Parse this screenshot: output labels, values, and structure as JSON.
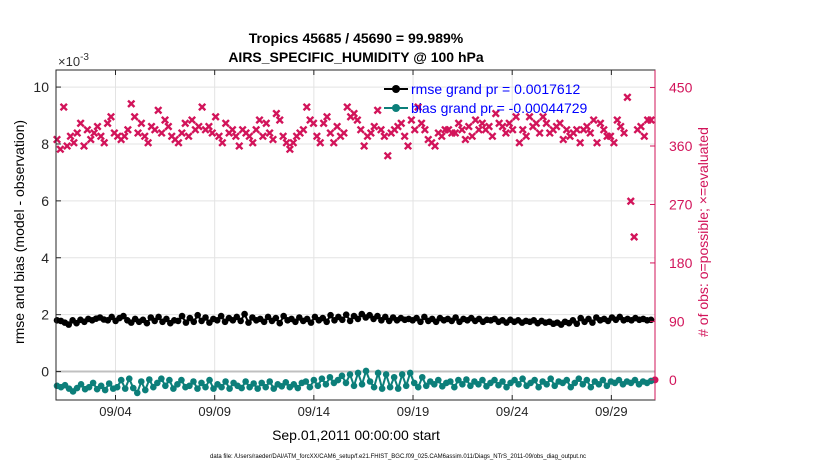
{
  "chart_data": {
    "type": "line",
    "title_line1": "Tropics 45685 / 45690 = 99.989%",
    "title_line2": "AIRS_SPECIFIC_HUMIDITY @ 100 hPa",
    "xlabel": "Sep.01,2011 00:00:00 start",
    "ylabel_left": "rmse and bias (model - observation)",
    "ylabel_right": "# of obs: o=possible; ×=evaluated",
    "exponent_label": "×10",
    "exponent_power": "-3",
    "footer": "data file: /Users/raeder/DAI/ATM_forcXX/CAM6_setup/f.e21.FHIST_BGC.f09_025.CAM6assim.011/Diags_NTrS_2011-09/obs_diag_output.nc",
    "xlim": [
      0,
      30.2
    ],
    "x_ticks": [
      3,
      8,
      13,
      18,
      23,
      28
    ],
    "x_tick_labels": [
      "09/04",
      "09/09",
      "09/14",
      "09/19",
      "09/24",
      "09/29"
    ],
    "ylim_left": [
      -1.0,
      10.6
    ],
    "y_left_ticks": [
      0,
      2,
      4,
      6,
      8,
      10
    ],
    "y_left_tick_labels": [
      "0",
      "2",
      "4",
      "6",
      "8",
      "10"
    ],
    "ylim_right": [
      -31,
      477
    ],
    "y_right_ticks": [
      0,
      90,
      180,
      270,
      360,
      450
    ],
    "y_right_tick_labels": [
      "0",
      "90",
      "180",
      "270",
      "360",
      "450"
    ],
    "colors": {
      "rmse": "#000000",
      "bias": "#0c7f7a",
      "obs": "#d2145a",
      "legend_text": "#0000ff",
      "zero_line": "#c0c0c0",
      "grid": "#e3e3e3"
    },
    "series": [
      {
        "name": "rmse grand pr = 0.0017612",
        "axis": "left",
        "values": [
          1.8,
          1.78,
          1.72,
          1.65,
          1.8,
          1.7,
          1.82,
          1.75,
          1.85,
          1.8,
          1.86,
          1.9,
          1.83,
          1.8,
          1.92,
          1.78,
          1.88,
          1.95,
          1.8,
          1.72,
          1.85,
          1.75,
          1.82,
          1.7,
          1.9,
          1.78,
          1.92,
          1.75,
          1.85,
          1.7,
          1.8,
          1.78,
          1.95,
          1.72,
          1.88,
          1.75,
          1.98,
          1.78,
          1.9,
          1.72,
          1.85,
          1.8,
          1.95,
          1.75,
          1.88,
          1.8,
          1.92,
          1.78,
          2.02,
          1.72,
          1.9,
          1.8,
          1.85,
          1.75,
          1.92,
          1.78,
          1.88,
          1.7,
          1.95,
          1.8,
          1.85,
          1.75,
          1.9,
          1.78,
          1.85,
          1.72,
          1.92,
          1.8,
          1.88,
          1.75,
          1.98,
          1.8,
          1.92,
          1.82,
          2.0,
          1.78,
          1.95,
          1.85,
          2.02,
          1.9,
          1.98,
          1.85,
          1.95,
          1.8,
          1.92,
          1.78,
          1.9,
          1.8,
          1.88,
          1.82,
          1.85,
          1.8,
          1.88,
          1.75,
          1.92,
          1.78,
          1.85,
          1.75,
          1.88,
          1.8,
          1.85,
          1.78,
          1.9,
          1.75,
          1.85,
          1.8,
          1.88,
          1.78,
          1.85,
          1.75,
          1.82,
          1.8,
          1.85,
          1.75,
          1.8,
          1.72,
          1.82,
          1.75,
          1.8,
          1.72,
          1.78,
          1.75,
          1.8,
          1.7,
          1.78,
          1.72,
          1.75,
          1.68,
          1.72,
          1.65,
          1.75,
          1.7,
          1.8,
          1.68,
          1.88,
          1.75,
          1.85,
          1.72,
          1.9,
          1.8,
          1.85,
          1.78,
          1.9,
          1.82,
          1.92,
          1.8,
          1.85,
          1.8,
          1.88,
          1.82,
          1.85,
          1.8,
          1.82
        ]
      },
      {
        "name": "bias grand pr = -0.00044729",
        "axis": "left",
        "values": [
          -0.5,
          -0.55,
          -0.48,
          -0.6,
          -0.7,
          -0.58,
          -0.45,
          -0.62,
          -0.55,
          -0.4,
          -0.62,
          -0.5,
          -0.65,
          -0.42,
          -0.6,
          -0.55,
          -0.3,
          -0.6,
          -0.25,
          -0.58,
          -0.75,
          -0.35,
          -0.65,
          -0.28,
          -0.55,
          -0.4,
          -0.25,
          -0.5,
          -0.3,
          -0.6,
          -0.45,
          -0.3,
          -0.55,
          -0.5,
          -0.35,
          -0.6,
          -0.4,
          -0.55,
          -0.3,
          -0.6,
          -0.45,
          -0.55,
          -0.35,
          -0.6,
          -0.4,
          -0.5,
          -0.58,
          -0.35,
          -0.55,
          -0.42,
          -0.6,
          -0.4,
          -0.55,
          -0.35,
          -0.6,
          -0.45,
          -0.52,
          -0.38,
          -0.55,
          -0.45,
          -0.58,
          -0.4,
          -0.35,
          -0.55,
          -0.3,
          -0.5,
          -0.25,
          -0.45,
          -0.2,
          -0.4,
          -0.3,
          -0.15,
          -0.4,
          -0.1,
          -0.5,
          -0.05,
          -0.45,
          0.02,
          -0.35,
          -0.55,
          -0.05,
          -0.6,
          -0.1,
          -0.55,
          -0.2,
          -0.6,
          -0.1,
          -0.5,
          -0.05,
          -0.4,
          -0.55,
          -0.2,
          -0.5,
          -0.35,
          -0.45,
          -0.3,
          -0.52,
          -0.4,
          -0.35,
          -0.55,
          -0.3,
          -0.45,
          -0.28,
          -0.5,
          -0.35,
          -0.45,
          -0.3,
          -0.52,
          -0.4,
          -0.3,
          -0.48,
          -0.35,
          -0.55,
          -0.4,
          -0.3,
          -0.45,
          -0.25,
          -0.5,
          -0.4,
          -0.3,
          -0.55,
          -0.35,
          -0.45,
          -0.25,
          -0.5,
          -0.35,
          -0.4,
          -0.3,
          -0.55,
          -0.4,
          -0.25,
          -0.45,
          -0.3,
          -0.55,
          -0.35,
          -0.45,
          -0.3,
          -0.5,
          -0.35,
          -0.4,
          -0.3,
          -0.45,
          -0.35,
          -0.4,
          -0.3,
          -0.45,
          -0.35,
          -0.4,
          -0.33
        ]
      },
      {
        "name": "# of obs evaluated",
        "axis": "right",
        "marker": "x",
        "values": [
          370,
          355,
          420,
          360,
          375,
          365,
          380,
          395,
          360,
          385,
          370,
          380,
          390,
          375,
          365,
          395,
          405,
          380,
          375,
          370,
          375,
          385,
          425,
          405,
          380,
          395,
          375,
          365,
          390,
          385,
          415,
          380,
          400,
          390,
          375,
          370,
          365,
          380,
          395,
          375,
          400,
          385,
          390,
          420,
          385,
          390,
          380,
          405,
          375,
          365,
          395,
          380,
          385,
          375,
          360,
          385,
          380,
          375,
          365,
          385,
          400,
          375,
          395,
          380,
          370,
          410,
          400,
          375,
          365,
          355,
          365,
          375,
          380,
          385,
          420,
          400,
          395,
          375,
          365,
          395,
          405,
          380,
          365,
          390,
          375,
          380,
          420,
          405,
          410,
          400,
          385,
          360,
          375,
          380,
          390,
          415,
          385,
          375,
          345,
          380,
          385,
          390,
          395,
          375,
          360,
          400,
          385,
          420,
          395,
          385,
          370,
          365,
          360,
          380,
          375,
          385,
          385,
          380,
          380,
          395,
          385,
          370,
          390,
          375,
          400,
          385,
          395,
          385,
          390,
          375,
          410,
          395,
          390,
          380,
          395,
          385,
          405,
          365,
          385,
          375,
          405,
          390,
          395,
          380,
          405,
          395,
          380,
          385,
          390,
          395,
          370,
          385,
          375,
          380,
          385,
          365,
          385,
          390,
          380,
          400,
          365,
          395,
          385,
          375,
          375,
          365,
          400,
          390,
          380,
          435,
          275,
          220,
          385,
          390,
          375,
          400,
          400
        ]
      }
    ]
  }
}
